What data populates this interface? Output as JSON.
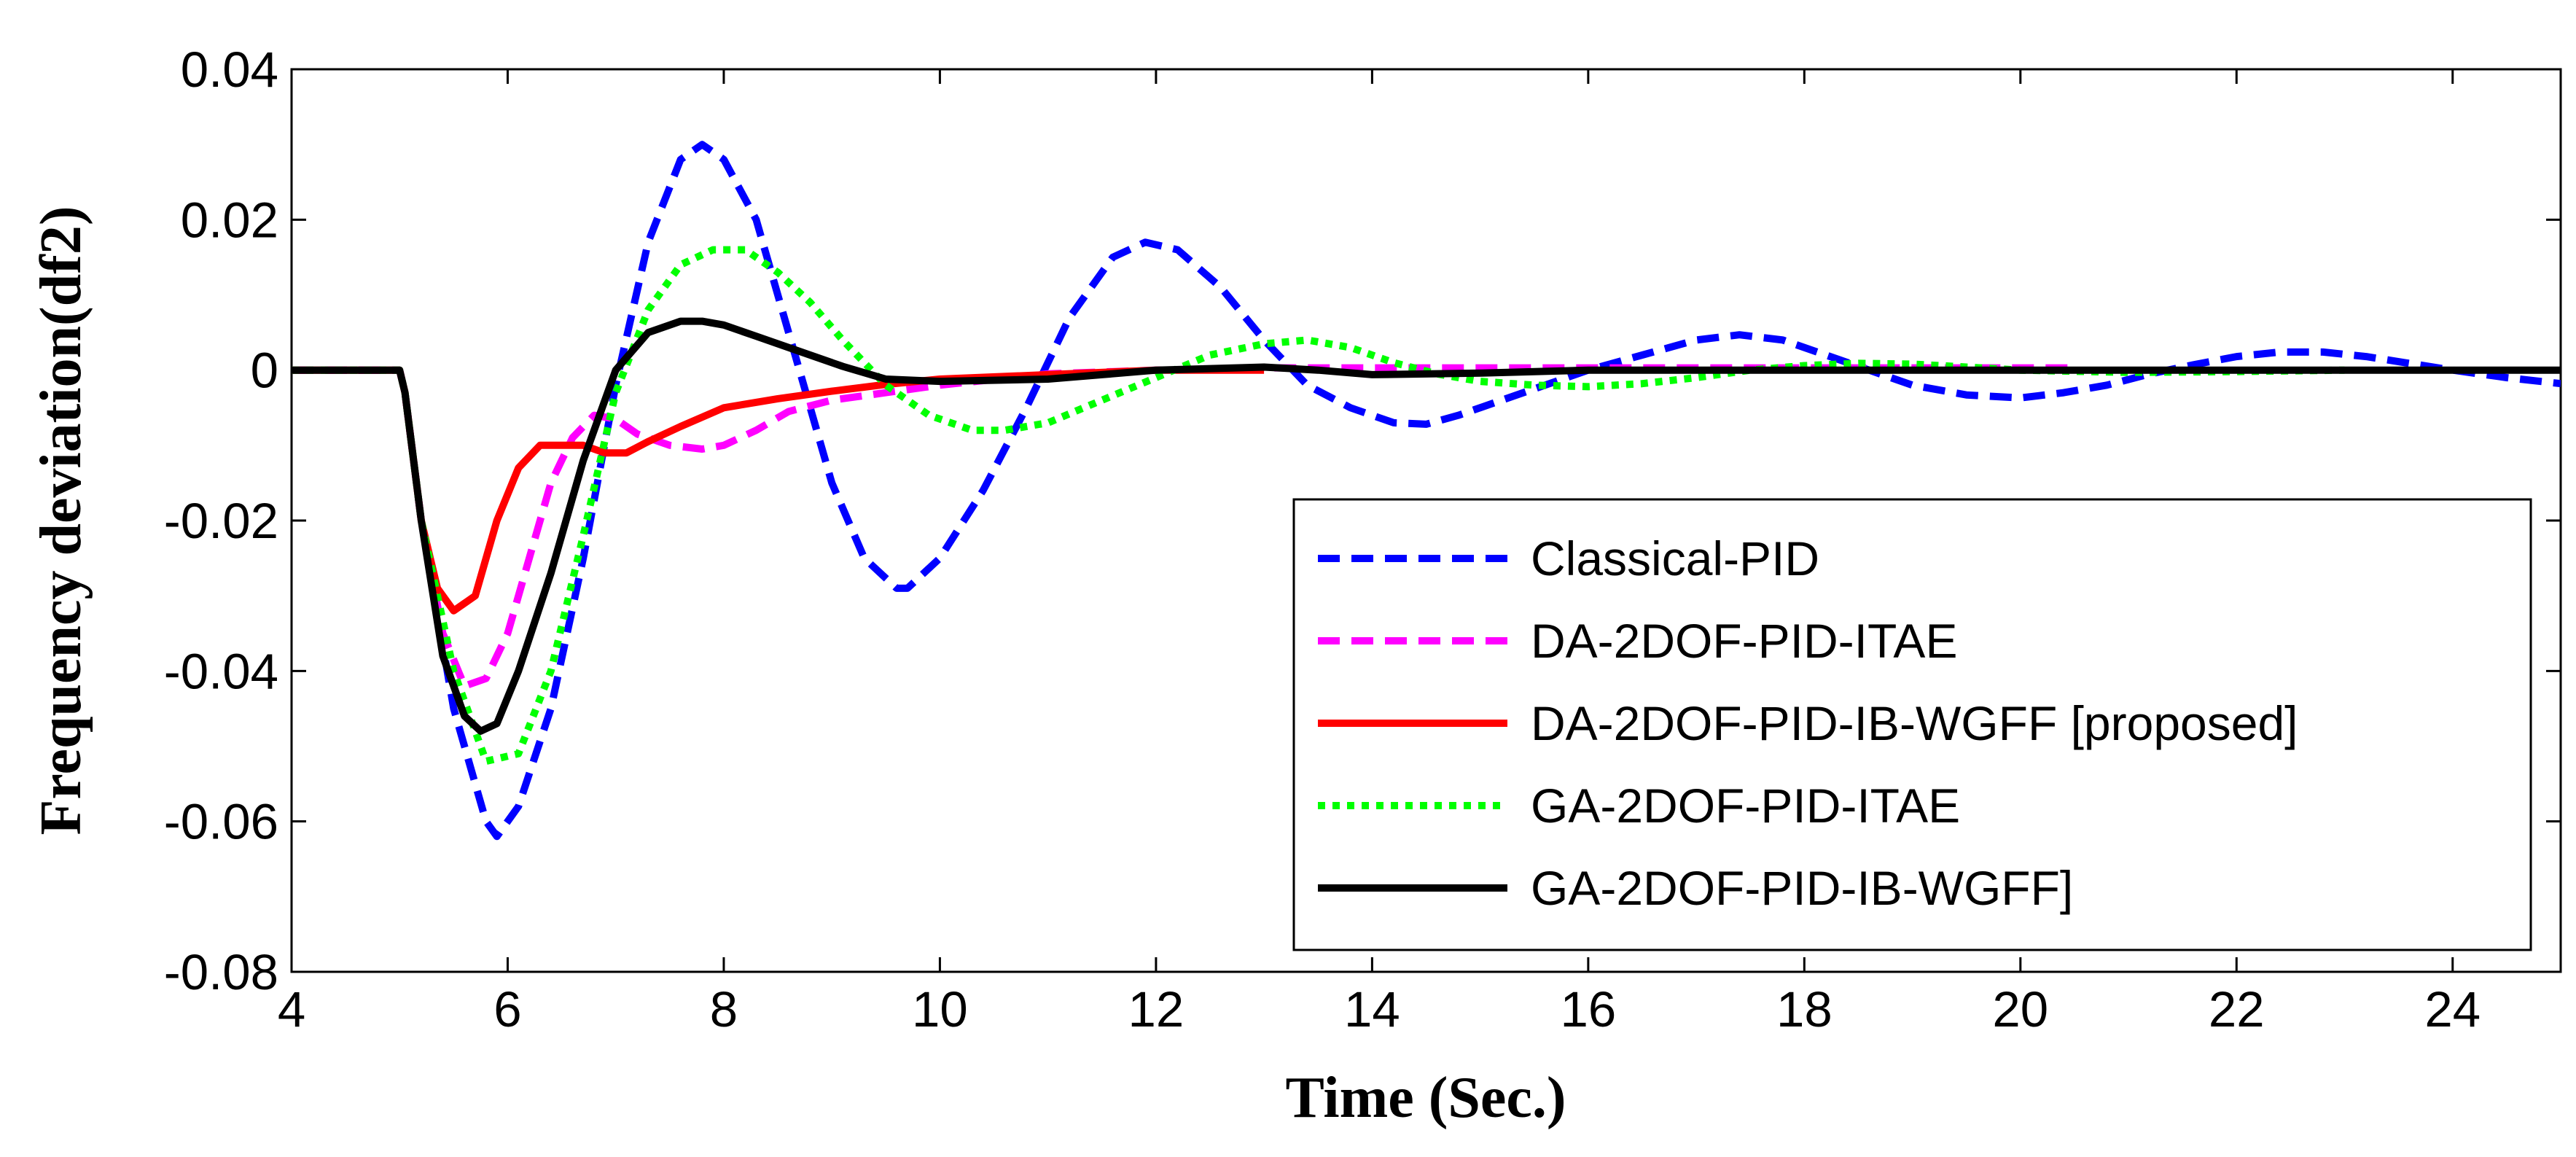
{
  "chart_data": {
    "type": "line",
    "title": "",
    "xlabel": "Time (Sec.)",
    "ylabel": "Frequency deviation(df2)",
    "xlim": [
      4,
      25
    ],
    "ylim": [
      -0.08,
      0.04
    ],
    "xticks": [
      4,
      6,
      8,
      10,
      12,
      14,
      16,
      18,
      20,
      22,
      24
    ],
    "xtick_labels": [
      "4",
      "6",
      "8",
      "10",
      "12",
      "14",
      "16",
      "18",
      "20",
      "22",
      "24"
    ],
    "yticks": [
      0.04,
      0.02,
      0,
      -0.02,
      -0.04,
      -0.06,
      -0.08
    ],
    "ytick_labels": [
      "0.04",
      "0.02",
      "0",
      "-0.02",
      "-0.04",
      "-0.06",
      "-0.08"
    ],
    "grid": false,
    "legend_position": "bottom-right",
    "series": [
      {
        "name": "Classical-PID",
        "color": "#0000ff",
        "style": "dashed",
        "x": [
          4,
          5,
          5.05,
          5.2,
          5.5,
          5.8,
          5.9,
          6.1,
          6.4,
          6.7,
          7,
          7.3,
          7.6,
          7.8,
          8,
          8.3,
          8.6,
          9,
          9.3,
          9.6,
          9.7,
          10,
          10.4,
          10.8,
          11.2,
          11.6,
          11.9,
          12.2,
          12.6,
          13,
          13.4,
          13.8,
          14.2,
          14.5,
          14.8,
          15.2,
          15.6,
          16,
          16.5,
          17,
          17.4,
          17.8,
          18.2,
          18.6,
          19,
          19.5,
          20,
          20.4,
          20.8,
          21.2,
          21.6,
          22,
          22.4,
          22.8,
          23.2,
          23.6,
          24,
          24.5,
          25
        ],
        "y": [
          0,
          0,
          -0.003,
          -0.02,
          -0.045,
          -0.06,
          -0.062,
          -0.058,
          -0.045,
          -0.025,
          -0.002,
          0.017,
          0.028,
          0.03,
          0.028,
          0.02,
          0.005,
          -0.015,
          -0.025,
          -0.029,
          -0.029,
          -0.025,
          -0.016,
          -0.005,
          0.007,
          0.015,
          0.017,
          0.016,
          0.011,
          0.004,
          -0.002,
          -0.005,
          -0.007,
          -0.0072,
          -0.006,
          -0.004,
          -0.002,
          0.0,
          0.002,
          0.004,
          0.0047,
          0.004,
          0.002,
          0.0,
          -0.002,
          -0.0033,
          -0.0037,
          -0.003,
          -0.002,
          -0.0005,
          0.0007,
          0.0018,
          0.0024,
          0.0024,
          0.0018,
          0.0009,
          0.0,
          -0.001,
          -0.0018
        ]
      },
      {
        "name": "DA-2DOF-PID-ITAE",
        "color": "#ff00ff",
        "style": "dashed",
        "x": [
          4,
          5,
          5.05,
          5.2,
          5.4,
          5.6,
          5.8,
          6,
          6.2,
          6.4,
          6.6,
          6.8,
          7,
          7.2,
          7.5,
          7.8,
          8,
          8.3,
          8.6,
          9,
          9.5,
          10,
          11,
          12,
          13,
          14,
          16,
          18,
          20,
          20.5
        ],
        "y": [
          0,
          0,
          -0.003,
          -0.02,
          -0.035,
          -0.042,
          -0.041,
          -0.035,
          -0.025,
          -0.015,
          -0.009,
          -0.006,
          -0.0065,
          -0.0085,
          -0.01,
          -0.0105,
          -0.01,
          -0.008,
          -0.0055,
          -0.004,
          -0.003,
          -0.002,
          -0.0005,
          0.0,
          0.0003,
          0.0003,
          0.0003,
          0.0003,
          0.0003,
          0.0003
        ]
      },
      {
        "name": "DA-2DOF-PID-IB-WGFF [proposed]",
        "color": "#ff0000",
        "style": "solid",
        "x": [
          4,
          5,
          5.05,
          5.2,
          5.35,
          5.5,
          5.7,
          5.9,
          6.1,
          6.3,
          6.5,
          6.7,
          6.9,
          7.1,
          7.3,
          7.6,
          8,
          8.5,
          9,
          9.5,
          10,
          11,
          12,
          13
        ],
        "y": [
          0,
          0,
          -0.003,
          -0.02,
          -0.029,
          -0.032,
          -0.03,
          -0.02,
          -0.013,
          -0.01,
          -0.01,
          -0.01,
          -0.011,
          -0.011,
          -0.0095,
          -0.0075,
          -0.005,
          -0.0038,
          -0.0028,
          -0.0019,
          -0.0012,
          -0.0006,
          0.0,
          0.0
        ]
      },
      {
        "name": "GA-2DOF-PID-ITAE",
        "color": "#00ff00",
        "style": "dotted",
        "x": [
          4,
          5,
          5.05,
          5.2,
          5.5,
          5.8,
          6.1,
          6.4,
          6.7,
          7,
          7.3,
          7.6,
          7.9,
          8.2,
          8.5,
          8.8,
          9.1,
          9.5,
          9.9,
          10.3,
          10.6,
          11,
          11.5,
          12,
          12.5,
          13,
          13.4,
          13.8,
          14.2,
          14.6,
          15,
          15.5,
          16,
          16.5,
          17,
          17.5,
          18,
          18.5,
          19,
          19.5,
          20,
          21,
          22,
          23
        ],
        "y": [
          0,
          0,
          -0.003,
          -0.02,
          -0.04,
          -0.052,
          -0.051,
          -0.04,
          -0.022,
          -0.003,
          0.008,
          0.014,
          0.016,
          0.016,
          0.013,
          0.009,
          0.004,
          -0.002,
          -0.006,
          -0.008,
          -0.008,
          -0.007,
          -0.004,
          -0.001,
          0.002,
          0.0035,
          0.004,
          0.003,
          0.001,
          -0.0005,
          -0.0015,
          -0.002,
          -0.0022,
          -0.0018,
          -0.001,
          0.0,
          0.0006,
          0.0009,
          0.0008,
          0.0004,
          0.0,
          -0.0003,
          -0.0002,
          0.0
        ]
      },
      {
        "name": "GA-2DOF-PID-IB-WGFF]",
        "color": "#000000",
        "style": "solid",
        "x": [
          4,
          5,
          5.05,
          5.2,
          5.4,
          5.6,
          5.75,
          5.9,
          6.1,
          6.4,
          6.7,
          7,
          7.3,
          7.6,
          7.8,
          8,
          8.3,
          8.7,
          9.1,
          9.5,
          10,
          11,
          11.5,
          12,
          13,
          13.5,
          14,
          15,
          16,
          18,
          20,
          25
        ],
        "y": [
          0,
          0,
          -0.003,
          -0.02,
          -0.038,
          -0.046,
          -0.048,
          -0.047,
          -0.04,
          -0.027,
          -0.012,
          0.0,
          0.005,
          0.0065,
          0.0065,
          0.006,
          0.0045,
          0.0025,
          0.0005,
          -0.0012,
          -0.0015,
          -0.0012,
          -0.0006,
          0.0,
          0.0004,
          0.0,
          -0.0006,
          -0.0004,
          0.0,
          0.0,
          0.0,
          0.0
        ]
      }
    ]
  }
}
